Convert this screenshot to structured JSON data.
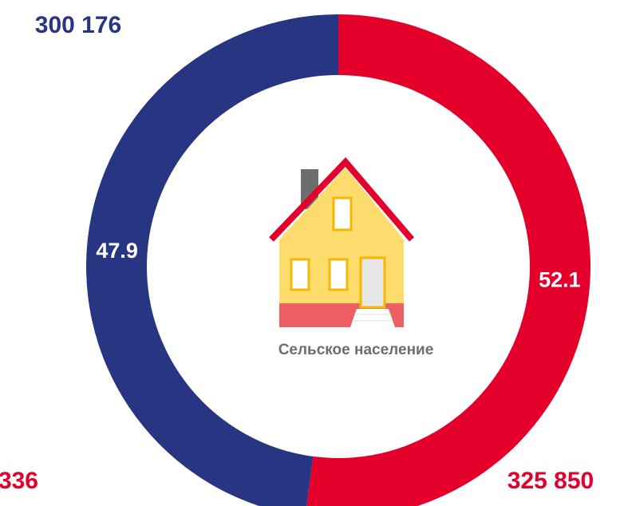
{
  "chart_data": {
    "type": "donut",
    "categories": [
      null,
      null
    ],
    "values": [
      52.1,
      47.9
    ],
    "colors": [
      "#e4002b",
      "#283583"
    ],
    "center_label": "Сельское население",
    "annotations": [
      "300 176",
      "325 850",
      "336"
    ]
  }
}
